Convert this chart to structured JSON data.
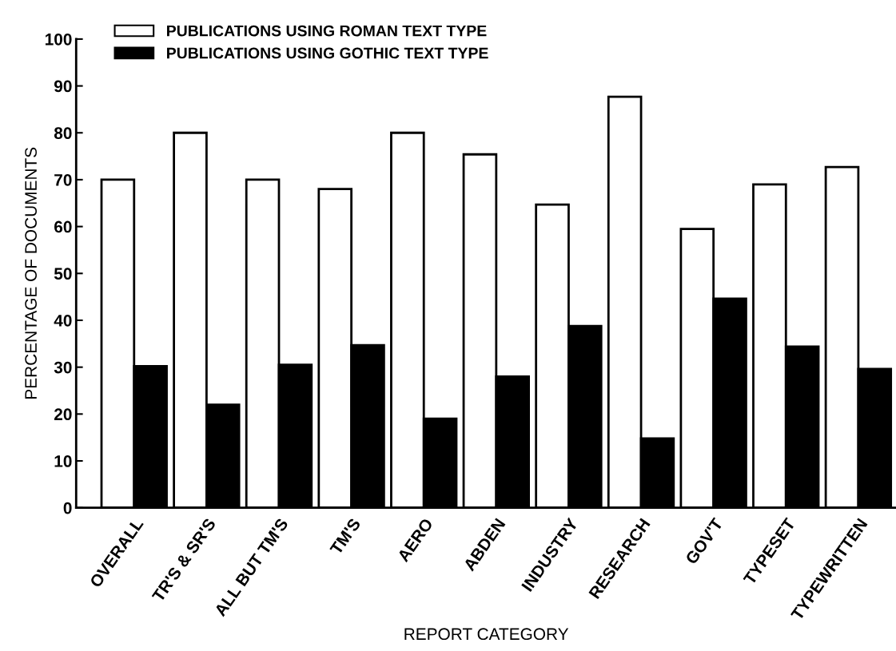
{
  "chart_data": {
    "type": "bar",
    "xlabel": "REPORT CATEGORY",
    "ylabel": "PERCENTAGE OF DOCUMENTS",
    "categories": [
      "OVERALL",
      "TR'S & SR'S",
      "ALL BUT TM'S",
      "TM'S",
      "AERO",
      "ABDEN",
      "INDUSTRY",
      "RESEARCH",
      "GOV'T",
      "TYPESET",
      "TYPEWRITTEN"
    ],
    "series": [
      {
        "name": "PUBLICATIONS USING ROMAN TEXT TYPE",
        "color": "#ffffff",
        "values": [
          70,
          80,
          70,
          68,
          80,
          75.4,
          64.7,
          87.7,
          59.5,
          69,
          72.7
        ]
      },
      {
        "name": "PUBLICATIONS USING GOTHIC TEXT TYPE",
        "color": "#000000",
        "values": [
          30.2,
          22,
          30.5,
          34.7,
          19,
          28,
          38.8,
          14.8,
          44.6,
          34.4,
          29.6
        ]
      }
    ],
    "ylim": [
      0,
      100
    ],
    "yticks": [
      0,
      10,
      20,
      30,
      40,
      50,
      60,
      70,
      80,
      90,
      100
    ],
    "grid": false,
    "legend": "top left"
  }
}
